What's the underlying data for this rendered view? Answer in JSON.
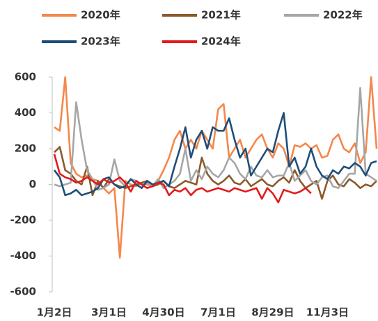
{
  "chart_data": {
    "type": "line",
    "categories": [
      "1月2日",
      null,
      null,
      null,
      null,
      null,
      null,
      null,
      null,
      null,
      "3月1日",
      null,
      null,
      null,
      null,
      null,
      null,
      null,
      null,
      null,
      "4月30日",
      null,
      null,
      null,
      null,
      null,
      null,
      null,
      null,
      null,
      "7月1日",
      null,
      null,
      null,
      null,
      null,
      null,
      null,
      null,
      null,
      "8月29日",
      null,
      null,
      null,
      null,
      null,
      null,
      null,
      null,
      null,
      "11月3日",
      null,
      null,
      null,
      null,
      null,
      null,
      null,
      null,
      null
    ],
    "ylim": [
      -600,
      600
    ],
    "yticks": [
      -600,
      -400,
      -200,
      0,
      200,
      400,
      600
    ],
    "series": [
      {
        "name": "2020年",
        "color": "#f4874b",
        "values": [
          320,
          300,
          600,
          120,
          60,
          40,
          50,
          30,
          20,
          -20,
          -50,
          -20,
          -410,
          20,
          0,
          -10,
          10,
          0,
          -10,
          20,
          80,
          150,
          250,
          300,
          200,
          250,
          200,
          300,
          250,
          200,
          420,
          450,
          150,
          200,
          250,
          150,
          200,
          250,
          280,
          200,
          150,
          230,
          200,
          100,
          220,
          210,
          230,
          200,
          220,
          150,
          160,
          250,
          280,
          200,
          180,
          230,
          120,
          180,
          600,
          200
        ]
      },
      {
        "name": "2021年",
        "color": "#8b5a2b",
        "values": [
          180,
          210,
          80,
          60,
          20,
          0,
          100,
          -60,
          20,
          -20,
          30,
          0,
          -10,
          -20,
          -10,
          0,
          10,
          20,
          -10,
          0,
          20,
          -10,
          -20,
          0,
          20,
          10,
          0,
          150,
          60,
          20,
          0,
          20,
          50,
          10,
          0,
          30,
          -10,
          10,
          30,
          0,
          -10,
          20,
          40,
          10,
          80,
          20,
          -20,
          0,
          20,
          -80,
          20,
          50,
          0,
          -10,
          30,
          10,
          -20,
          0,
          -10,
          20
        ]
      },
      {
        "name": "2022年",
        "color": "#a6a6a6",
        "values": [
          0,
          -10,
          0,
          10,
          460,
          250,
          80,
          30,
          -30,
          -20,
          0,
          140,
          20,
          -10,
          30,
          20,
          0,
          10,
          -10,
          30,
          -20,
          0,
          20,
          60,
          200,
          20,
          80,
          30,
          100,
          60,
          40,
          80,
          150,
          120,
          60,
          30,
          100,
          50,
          40,
          80,
          40,
          50,
          50,
          120,
          20,
          50,
          80,
          20,
          0,
          40,
          50,
          -10,
          -20,
          20,
          60,
          60,
          540,
          60,
          40,
          20
        ]
      },
      {
        "name": "2023年",
        "color": "#1f4e79",
        "values": [
          80,
          40,
          -60,
          -50,
          -30,
          -60,
          -50,
          -40,
          -20,
          30,
          40,
          0,
          -20,
          -10,
          30,
          0,
          -20,
          20,
          0,
          10,
          20,
          -10,
          100,
          200,
          320,
          150,
          250,
          300,
          200,
          320,
          300,
          300,
          370,
          250,
          150,
          200,
          50,
          100,
          150,
          200,
          180,
          300,
          400,
          100,
          150,
          60,
          100,
          200,
          100,
          50,
          30,
          80,
          60,
          100,
          90,
          120,
          100,
          50,
          120,
          130
        ]
      },
      {
        "name": "2024年",
        "color": "#e31a1c",
        "values": [
          170,
          60,
          40,
          30,
          10,
          20,
          40,
          20,
          0,
          30,
          10,
          20,
          40,
          10,
          -40,
          20,
          0,
          -20,
          -10,
          10,
          0,
          -60,
          -30,
          -40,
          -20,
          -60,
          -30,
          -20,
          -40,
          -30,
          -20,
          -30,
          -40,
          -20,
          -30,
          -40,
          -30,
          -20,
          -80,
          -20,
          -50,
          -100,
          -30,
          -40,
          -50,
          -40,
          -20,
          -50,
          null,
          null,
          null,
          null,
          null,
          null,
          null,
          null,
          null,
          null,
          null,
          null
        ]
      }
    ]
  }
}
